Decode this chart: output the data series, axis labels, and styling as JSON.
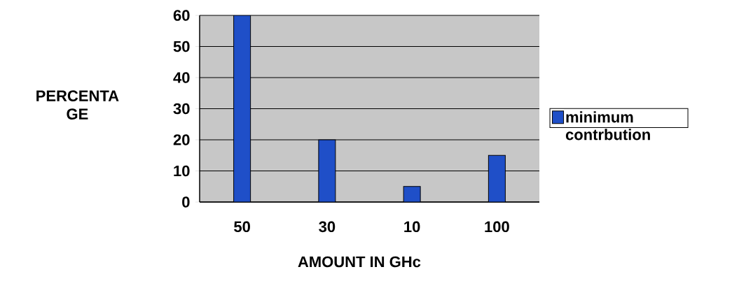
{
  "chart_data": {
    "type": "bar",
    "categories": [
      "50",
      "30",
      "10",
      "100"
    ],
    "series": [
      {
        "name": "minimum contrbution",
        "color": "#1f4fc8",
        "values": [
          60,
          20,
          5,
          15
        ]
      }
    ],
    "xlabel": "AMOUNT IN GHc",
    "ylabel": "PERCENTA GE",
    "ylim": [
      0,
      60
    ],
    "yticks": [
      0,
      10,
      20,
      30,
      40,
      50,
      60
    ],
    "grid": "y",
    "legend": "right"
  }
}
